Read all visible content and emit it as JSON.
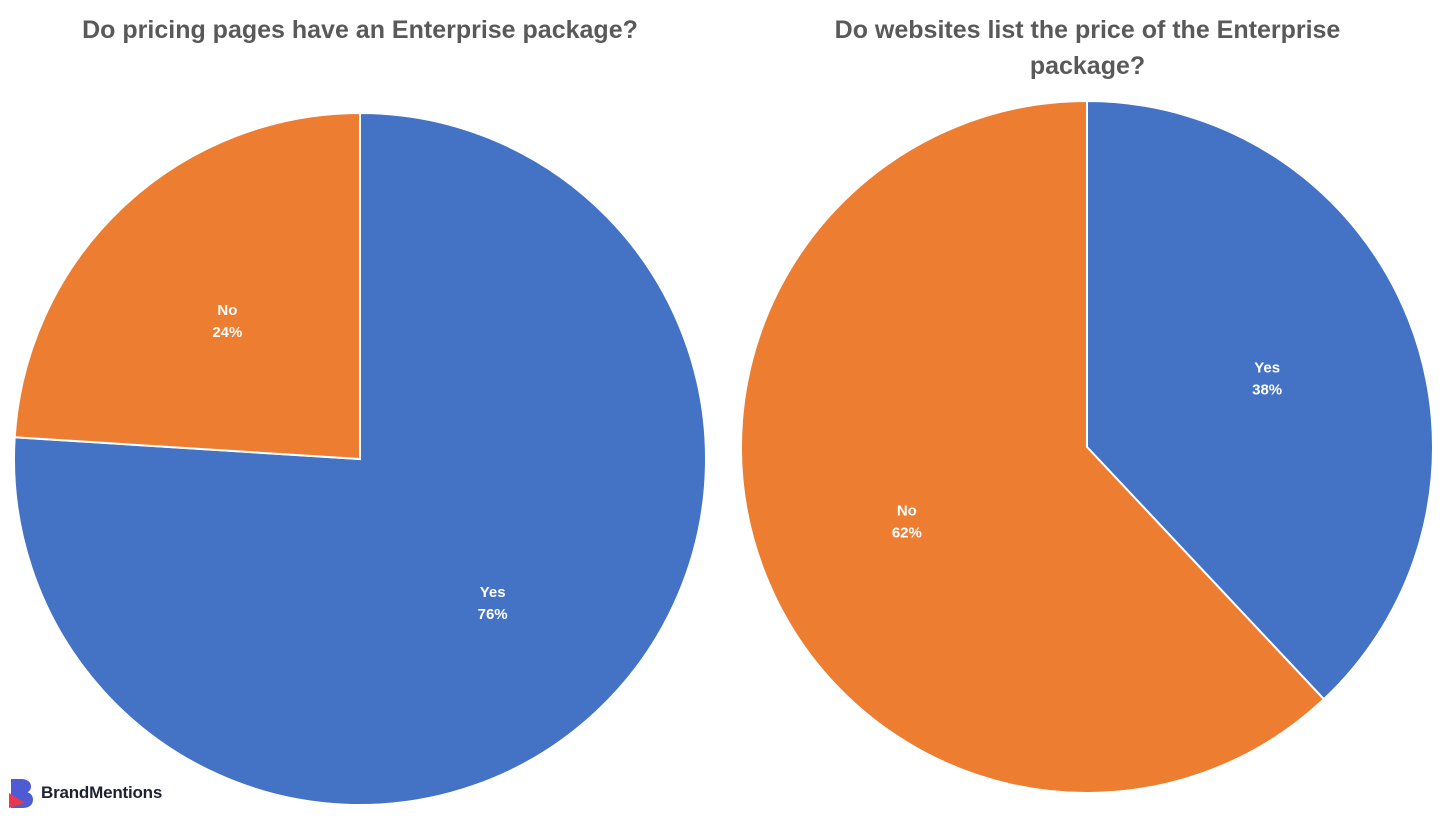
{
  "colors": {
    "yes": "#4472c4",
    "no": "#ed7d31",
    "title": "#595959",
    "label": "#ffffff",
    "brand_blue": "#4f5bd5",
    "brand_red": "#e8384f"
  },
  "brand": {
    "name": "BrandMentions"
  },
  "chart_data": [
    {
      "type": "pie",
      "title": "Do pricing pages have an Enterprise package?",
      "slices": [
        {
          "label": "Yes",
          "value": 76,
          "display": "76%",
          "color": "#4472c4"
        },
        {
          "label": "No",
          "value": 24,
          "display": "24%",
          "color": "#ed7d31"
        }
      ],
      "start_angle_deg": 0,
      "direction": "clockwise"
    },
    {
      "type": "pie",
      "title": "Do websites list the price of the Enterprise package?",
      "slices": [
        {
          "label": "Yes",
          "value": 38,
          "display": "38%",
          "color": "#4472c4"
        },
        {
          "label": "No",
          "value": 62,
          "display": "62%",
          "color": "#ed7d31"
        }
      ],
      "start_angle_deg": 0,
      "direction": "clockwise"
    }
  ]
}
